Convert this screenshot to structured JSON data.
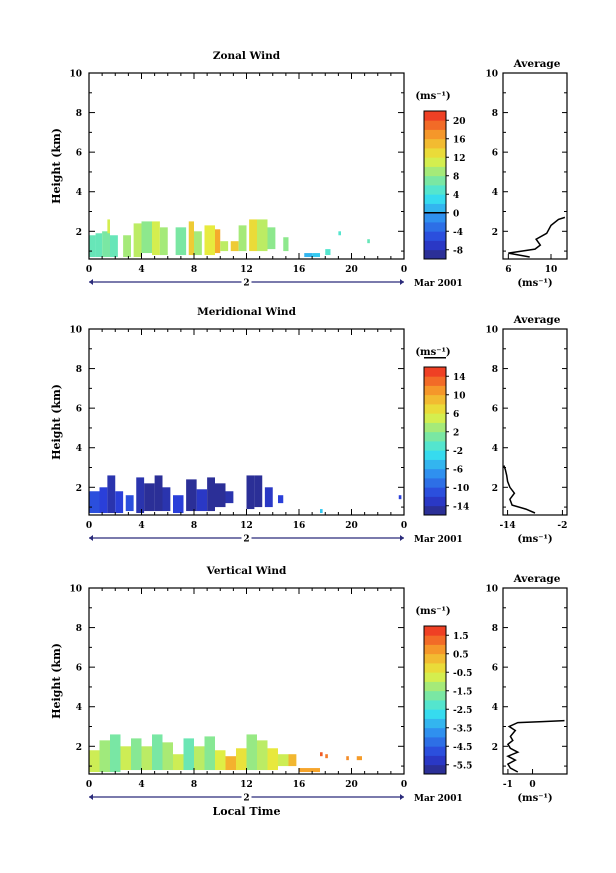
{
  "panels": [
    {
      "id": "zonal",
      "title": "Zonal Wind",
      "ylabel": "Height (km)",
      "ylim": [
        0.6,
        10
      ],
      "yticks": [
        "2",
        "4",
        "6",
        "8",
        "10"
      ],
      "xlim": [
        0,
        24
      ],
      "xticks": [
        "0",
        "4",
        "8",
        "12",
        "16",
        "20",
        "0"
      ],
      "date_mark": "2",
      "date_label": "Mar 2001",
      "colorbar": {
        "unit": "(ms⁻¹)",
        "ticks": [
          "20",
          "16",
          "12",
          "8",
          "4",
          "0",
          "-4",
          "-8"
        ],
        "min": -10,
        "max": 22,
        "zero_line": 0
      },
      "average": {
        "title": "Average",
        "xlim": [
          5.5,
          11.5
        ],
        "xticks": [
          "6",
          "10"
        ],
        "unit": "(ms⁻¹)",
        "ylim": [
          0.6,
          10
        ],
        "yticks": [
          "2",
          "4",
          "6",
          "8",
          "10"
        ],
        "profile": [
          [
            8.0,
            0.7
          ],
          [
            6.0,
            0.9
          ],
          [
            8.5,
            1.1
          ],
          [
            9.0,
            1.3
          ],
          [
            8.6,
            1.6
          ],
          [
            9.6,
            1.9
          ],
          [
            10.0,
            2.3
          ],
          [
            10.7,
            2.6
          ],
          [
            11.3,
            2.7
          ]
        ]
      }
    },
    {
      "id": "meridional",
      "title": "Meridional Wind",
      "ylabel": "Height (km)",
      "ylim": [
        0.6,
        10
      ],
      "yticks": [
        "2",
        "4",
        "6",
        "8",
        "10"
      ],
      "xlim": [
        0,
        24
      ],
      "xticks": [
        "0",
        "4",
        "8",
        "12",
        "16",
        "20",
        "0"
      ],
      "date_mark": "2",
      "date_label": "Mar 2001",
      "colorbar": {
        "unit": "(ms⁻¹)",
        "ticks": [
          "14",
          "10",
          "6",
          "2",
          "-2",
          "-6",
          "-10",
          "-14"
        ],
        "min": -16,
        "max": 16,
        "zero_line": 0
      },
      "average": {
        "title": "Average",
        "xlim": [
          -15,
          -1
        ],
        "xticks": [
          "-14",
          "-2"
        ],
        "unit": "(ms⁻¹)",
        "ylim": [
          0.6,
          10
        ],
        "yticks": [
          "2",
          "4",
          "6",
          "8",
          "10"
        ],
        "profile": [
          [
            -8.0,
            0.7
          ],
          [
            -10.0,
            0.9
          ],
          [
            -13.0,
            1.1
          ],
          [
            -13.5,
            1.4
          ],
          [
            -12.5,
            1.7
          ],
          [
            -13.5,
            2.0
          ],
          [
            -14.0,
            2.3
          ],
          [
            -14.2,
            2.6
          ],
          [
            -14.5,
            2.9
          ],
          [
            -14.8,
            3.1
          ]
        ]
      }
    },
    {
      "id": "vertical",
      "title": "Vertical Wind",
      "ylabel": "Height (km)",
      "ylim": [
        0.6,
        10
      ],
      "yticks": [
        "2",
        "4",
        "6",
        "8",
        "10"
      ],
      "xlim": [
        0,
        24
      ],
      "xticks": [
        "0",
        "4",
        "8",
        "12",
        "16",
        "20",
        "0"
      ],
      "date_mark": "2",
      "date_label": "Mar 2001",
      "xlabel": "Local Time",
      "colorbar": {
        "unit": "(ms⁻¹)",
        "ticks": [
          "1.5",
          "0.5",
          "-0.5",
          "-1.5",
          "-2.5",
          "-3.5",
          "-4.5",
          "-5.5"
        ],
        "min": -6.5,
        "max": 2.0,
        "zero_line": null
      },
      "average": {
        "title": "Average",
        "xlim": [
          -1.2,
          1.4
        ],
        "xticks": [
          "-1",
          "0"
        ],
        "unit": "(ms⁻¹)",
        "ylim": [
          0.6,
          10
        ],
        "yticks": [
          "2",
          "4",
          "6",
          "8",
          "10"
        ],
        "profile": [
          [
            -0.6,
            0.7
          ],
          [
            -0.9,
            0.9
          ],
          [
            -1.0,
            1.1
          ],
          [
            -0.7,
            1.3
          ],
          [
            -1.0,
            1.5
          ],
          [
            -0.6,
            1.7
          ],
          [
            -0.9,
            1.9
          ],
          [
            -1.0,
            2.1
          ],
          [
            -0.8,
            2.3
          ],
          [
            -0.9,
            2.5
          ],
          [
            -0.7,
            2.8
          ],
          [
            -0.95,
            3.0
          ],
          [
            -0.6,
            3.2
          ],
          [
            0.4,
            3.25
          ],
          [
            1.3,
            3.3
          ]
        ]
      }
    }
  ],
  "chart_data": [
    {
      "type": "heatmap",
      "title": "Zonal Wind",
      "xlabel": "",
      "ylabel": "Height (km)",
      "xlim": [
        0,
        24
      ],
      "ylim": [
        0.6,
        10
      ],
      "colorbar_label": "(ms⁻¹)",
      "colorbar_range": [
        -10,
        22
      ],
      "cells": [
        {
          "t0": 0.0,
          "t1": 0.5,
          "h0": 0.7,
          "h1": 1.8,
          "v": 6
        },
        {
          "t0": 0.5,
          "t1": 1.0,
          "h0": 0.7,
          "h1": 1.9,
          "v": 6
        },
        {
          "t0": 1.0,
          "t1": 1.6,
          "h0": 0.7,
          "h1": 2.0,
          "v": 7
        },
        {
          "t0": 1.6,
          "t1": 2.2,
          "h0": 0.7,
          "h1": 1.8,
          "v": 6
        },
        {
          "t0": 1.4,
          "t1": 1.6,
          "h0": 1.9,
          "h1": 2.6,
          "v": 11
        },
        {
          "t0": 2.6,
          "t1": 3.2,
          "h0": 0.7,
          "h1": 1.8,
          "v": 9
        },
        {
          "t0": 3.4,
          "t1": 4.0,
          "h0": 0.7,
          "h1": 2.4,
          "v": 10
        },
        {
          "t0": 4.0,
          "t1": 4.8,
          "h0": 0.9,
          "h1": 2.5,
          "v": 8
        },
        {
          "t0": 4.8,
          "t1": 5.4,
          "h0": 0.8,
          "h1": 2.5,
          "v": 11
        },
        {
          "t0": 5.4,
          "t1": 6.0,
          "h0": 0.8,
          "h1": 2.2,
          "v": 9
        },
        {
          "t0": 6.6,
          "t1": 7.4,
          "h0": 0.8,
          "h1": 2.2,
          "v": 7
        },
        {
          "t0": 7.6,
          "t1": 8.0,
          "h0": 0.8,
          "h1": 2.5,
          "v": 14
        },
        {
          "t0": 8.0,
          "t1": 8.6,
          "h0": 0.8,
          "h1": 2.0,
          "v": 9
        },
        {
          "t0": 8.8,
          "t1": 9.6,
          "h0": 0.8,
          "h1": 2.3,
          "v": 12
        },
        {
          "t0": 9.6,
          "t1": 10.0,
          "h0": 0.9,
          "h1": 2.1,
          "v": 16
        },
        {
          "t0": 10.0,
          "t1": 10.6,
          "h0": 1.0,
          "h1": 1.5,
          "v": 10
        },
        {
          "t0": 10.8,
          "t1": 11.4,
          "h0": 1.0,
          "h1": 1.5,
          "v": 14
        },
        {
          "t0": 11.4,
          "t1": 12.0,
          "h0": 1.0,
          "h1": 2.3,
          "v": 9
        },
        {
          "t0": 12.2,
          "t1": 12.8,
          "h0": 1.0,
          "h1": 2.6,
          "v": 13
        },
        {
          "t0": 12.8,
          "t1": 13.6,
          "h0": 1.0,
          "h1": 2.6,
          "v": 10
        },
        {
          "t0": 13.6,
          "t1": 14.2,
          "h0": 1.1,
          "h1": 2.2,
          "v": 8
        },
        {
          "t0": 14.8,
          "t1": 15.2,
          "h0": 1.0,
          "h1": 1.7,
          "v": 8
        },
        {
          "t0": 16.4,
          "t1": 17.0,
          "h0": 0.7,
          "h1": 0.9,
          "v": 1
        },
        {
          "t0": 17.0,
          "t1": 17.6,
          "h0": 0.7,
          "h1": 0.9,
          "v": 2
        },
        {
          "t0": 18.0,
          "t1": 18.4,
          "h0": 0.8,
          "h1": 1.1,
          "v": 5
        },
        {
          "t0": 19.0,
          "t1": 19.2,
          "h0": 1.8,
          "h1": 2.0,
          "v": 5
        },
        {
          "t0": 21.2,
          "t1": 21.4,
          "h0": 1.4,
          "h1": 1.6,
          "v": 6
        }
      ]
    },
    {
      "type": "heatmap",
      "title": "Meridional Wind",
      "xlabel": "",
      "ylabel": "Height (km)",
      "xlim": [
        0,
        24
      ],
      "ylim": [
        0.6,
        10
      ],
      "colorbar_label": "(ms⁻¹)",
      "colorbar_range": [
        -16,
        16
      ],
      "cells": [
        {
          "t0": 0.0,
          "t1": 0.8,
          "h0": 0.7,
          "h1": 1.8,
          "v": -11
        },
        {
          "t0": 0.8,
          "t1": 1.4,
          "h0": 0.7,
          "h1": 2.0,
          "v": -12
        },
        {
          "t0": 1.4,
          "t1": 2.0,
          "h0": 0.7,
          "h1": 2.6,
          "v": -14
        },
        {
          "t0": 2.0,
          "t1": 2.6,
          "h0": 0.7,
          "h1": 1.8,
          "v": -12
        },
        {
          "t0": 2.8,
          "t1": 3.4,
          "h0": 0.8,
          "h1": 1.6,
          "v": -11
        },
        {
          "t0": 3.6,
          "t1": 4.2,
          "h0": 0.7,
          "h1": 2.5,
          "v": -14
        },
        {
          "t0": 4.2,
          "t1": 5.0,
          "h0": 0.8,
          "h1": 2.2,
          "v": -15
        },
        {
          "t0": 5.0,
          "t1": 5.6,
          "h0": 0.8,
          "h1": 2.6,
          "v": -15
        },
        {
          "t0": 5.6,
          "t1": 6.2,
          "h0": 0.8,
          "h1": 2.0,
          "v": -14
        },
        {
          "t0": 6.4,
          "t1": 7.2,
          "h0": 0.7,
          "h1": 1.6,
          "v": -12
        },
        {
          "t0": 7.4,
          "t1": 8.2,
          "h0": 0.8,
          "h1": 2.4,
          "v": -15
        },
        {
          "t0": 8.2,
          "t1": 9.0,
          "h0": 0.8,
          "h1": 1.9,
          "v": -13
        },
        {
          "t0": 9.0,
          "t1": 9.6,
          "h0": 0.8,
          "h1": 2.5,
          "v": -15
        },
        {
          "t0": 9.6,
          "t1": 10.4,
          "h0": 1.0,
          "h1": 2.2,
          "v": -15
        },
        {
          "t0": 10.4,
          "t1": 11.0,
          "h0": 1.2,
          "h1": 1.8,
          "v": -14
        },
        {
          "t0": 12.0,
          "t1": 12.6,
          "h0": 0.9,
          "h1": 2.6,
          "v": -15
        },
        {
          "t0": 12.6,
          "t1": 13.2,
          "h0": 1.0,
          "h1": 2.6,
          "v": -15
        },
        {
          "t0": 13.4,
          "t1": 14.0,
          "h0": 1.0,
          "h1": 2.0,
          "v": -13
        },
        {
          "t0": 14.4,
          "t1": 14.8,
          "h0": 1.2,
          "h1": 1.6,
          "v": -12
        },
        {
          "t0": 17.6,
          "t1": 17.8,
          "h0": 0.7,
          "h1": 0.9,
          "v": -4
        },
        {
          "t0": 23.6,
          "t1": 23.8,
          "h0": 1.4,
          "h1": 1.6,
          "v": -12
        }
      ]
    },
    {
      "type": "heatmap",
      "title": "Vertical Wind",
      "xlabel": "Local Time",
      "ylabel": "Height (km)",
      "xlim": [
        0,
        24
      ],
      "ylim": [
        0.6,
        10
      ],
      "colorbar_label": "(ms⁻¹)",
      "colorbar_range": [
        -6.5,
        2.0
      ],
      "cells": [
        {
          "t0": 0.0,
          "t1": 0.8,
          "h0": 0.7,
          "h1": 1.8,
          "v": -1.0
        },
        {
          "t0": 0.8,
          "t1": 1.6,
          "h0": 0.7,
          "h1": 2.3,
          "v": -1.5
        },
        {
          "t0": 1.6,
          "t1": 2.4,
          "h0": 0.7,
          "h1": 2.6,
          "v": -2.0
        },
        {
          "t0": 2.4,
          "t1": 3.2,
          "h0": 0.8,
          "h1": 2.0,
          "v": -1.0
        },
        {
          "t0": 3.2,
          "t1": 4.0,
          "h0": 0.8,
          "h1": 2.4,
          "v": -1.8
        },
        {
          "t0": 4.0,
          "t1": 4.8,
          "h0": 0.8,
          "h1": 2.0,
          "v": -1.2
        },
        {
          "t0": 4.8,
          "t1": 5.6,
          "h0": 0.8,
          "h1": 2.6,
          "v": -2.0
        },
        {
          "t0": 5.6,
          "t1": 6.4,
          "h0": 0.8,
          "h1": 2.2,
          "v": -1.4
        },
        {
          "t0": 6.4,
          "t1": 7.2,
          "h0": 0.8,
          "h1": 1.6,
          "v": -1.0
        },
        {
          "t0": 7.2,
          "t1": 8.0,
          "h0": 0.8,
          "h1": 2.4,
          "v": -2.2
        },
        {
          "t0": 8.0,
          "t1": 8.8,
          "h0": 0.8,
          "h1": 2.0,
          "v": -1.2
        },
        {
          "t0": 8.8,
          "t1": 9.6,
          "h0": 0.8,
          "h1": 2.5,
          "v": -1.8
        },
        {
          "t0": 9.6,
          "t1": 10.4,
          "h0": 0.8,
          "h1": 1.8,
          "v": -0.8
        },
        {
          "t0": 10.4,
          "t1": 11.2,
          "h0": 0.8,
          "h1": 1.5,
          "v": 0.3
        },
        {
          "t0": 11.2,
          "t1": 12.0,
          "h0": 0.8,
          "h1": 1.9,
          "v": -0.5
        },
        {
          "t0": 12.0,
          "t1": 12.8,
          "h0": 0.8,
          "h1": 2.6,
          "v": -1.6
        },
        {
          "t0": 12.8,
          "t1": 13.6,
          "h0": 0.8,
          "h1": 2.3,
          "v": -1.2
        },
        {
          "t0": 13.6,
          "t1": 14.4,
          "h0": 0.8,
          "h1": 1.9,
          "v": -0.6
        },
        {
          "t0": 14.4,
          "t1": 15.2,
          "h0": 1.0,
          "h1": 1.6,
          "v": -1.0
        },
        {
          "t0": 15.2,
          "t1": 15.8,
          "h0": 1.0,
          "h1": 1.6,
          "v": 0.2
        },
        {
          "t0": 16.0,
          "t1": 17.6,
          "h0": 0.7,
          "h1": 0.9,
          "v": 0.5
        },
        {
          "t0": 17.6,
          "t1": 17.8,
          "h0": 1.5,
          "h1": 1.7,
          "v": 1.4
        },
        {
          "t0": 18.0,
          "t1": 18.2,
          "h0": 1.4,
          "h1": 1.6,
          "v": 1.0
        },
        {
          "t0": 19.6,
          "t1": 19.8,
          "h0": 1.3,
          "h1": 1.5,
          "v": 0.8
        },
        {
          "t0": 20.4,
          "t1": 20.8,
          "h0": 1.3,
          "h1": 1.5,
          "v": 0.6
        }
      ]
    },
    {
      "type": "line",
      "title": "Average",
      "xlabel": "(ms⁻¹)",
      "ylabel": "",
      "xlim": [
        5.5,
        11.5
      ],
      "ylim": [
        0.6,
        10
      ],
      "series": [
        {
          "x": [
            8.0,
            6.0,
            8.5,
            9.0,
            8.6,
            9.6,
            10.0,
            10.7,
            11.3
          ],
          "y": [
            0.7,
            0.9,
            1.1,
            1.3,
            1.6,
            1.9,
            2.3,
            2.6,
            2.7
          ]
        }
      ]
    },
    {
      "type": "line",
      "title": "Average",
      "xlabel": "(ms⁻¹)",
      "ylabel": "",
      "xlim": [
        -15,
        -1
      ],
      "ylim": [
        0.6,
        10
      ],
      "series": [
        {
          "x": [
            -8.0,
            -10.0,
            -13.0,
            -13.5,
            -12.5,
            -13.5,
            -14.0,
            -14.2,
            -14.5,
            -14.8
          ],
          "y": [
            0.7,
            0.9,
            1.1,
            1.4,
            1.7,
            2.0,
            2.3,
            2.6,
            2.9,
            3.1
          ]
        }
      ]
    },
    {
      "type": "line",
      "title": "Average",
      "xlabel": "(ms⁻¹)",
      "ylabel": "",
      "xlim": [
        -1.2,
        1.4
      ],
      "ylim": [
        0.6,
        10
      ],
      "series": [
        {
          "x": [
            -0.6,
            -0.9,
            -1.0,
            -0.7,
            -1.0,
            -0.6,
            -0.9,
            -1.0,
            -0.8,
            -0.9,
            -0.7,
            -0.95,
            -0.6,
            0.4,
            1.3
          ],
          "y": [
            0.7,
            0.9,
            1.1,
            1.3,
            1.5,
            1.7,
            1.9,
            2.1,
            2.3,
            2.5,
            2.8,
            3.0,
            3.2,
            3.25,
            3.3
          ]
        }
      ]
    }
  ]
}
